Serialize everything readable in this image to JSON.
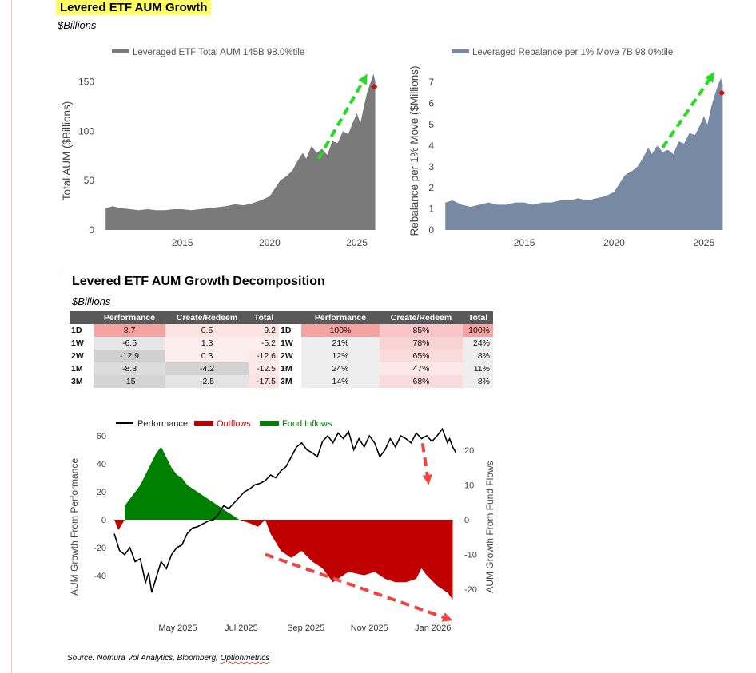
{
  "header": {
    "title": "Levered ETF AUM Growth",
    "subtitle": "$Billions"
  },
  "section2": {
    "title": "Levered ETF AUM Growth Decomposition",
    "subtitle": "$Billions"
  },
  "source": {
    "prefix": "Source: Nomura Vol Analytics, Bloomberg, ",
    "underlined": "Optionmetrics"
  },
  "colors": {
    "aum_area": "#7a7a7a",
    "rebalance_area": "#7889a3",
    "arrow": "#22dd22",
    "marker": "#cc1111",
    "performance_line": "#000000",
    "outflows": "#c00000",
    "inflows": "#008000",
    "down_arrow": "#ee4444"
  },
  "table": {
    "headers": [
      "",
      "Performance",
      "Create/Redeem",
      "Total",
      "",
      "Performance",
      "Create/Redeem",
      "Total"
    ],
    "rows": [
      {
        "label": "1D",
        "perf": "8.7",
        "cr": "0.5",
        "total": "9.2",
        "label2": "1D",
        "pct_perf": "100%",
        "pct_cr": "85%",
        "pct_total": "100%"
      },
      {
        "label": "1W",
        "perf": "-6.5",
        "cr": "1.3",
        "total": "-5.2",
        "label2": "1W",
        "pct_perf": "21%",
        "pct_cr": "78%",
        "pct_total": "24%"
      },
      {
        "label": "2W",
        "perf": "-12.9",
        "cr": "0.3",
        "total": "-12.6",
        "label2": "2W",
        "pct_perf": "12%",
        "pct_cr": "65%",
        "pct_total": "8%"
      },
      {
        "label": "1M",
        "perf": "-8.3",
        "cr": "-4.2",
        "total": "-12.5",
        "label2": "1M",
        "pct_perf": "24%",
        "pct_cr": "47%",
        "pct_total": "11%"
      },
      {
        "label": "3M",
        "perf": "-15",
        "cr": "-2.5",
        "total": "-17.5",
        "label2": "3M",
        "pct_perf": "14%",
        "pct_cr": "68%",
        "pct_total": "8%"
      }
    ],
    "cell_colors": [
      [
        "#f4a3a3",
        "#fce3e3",
        "#fce3e3",
        "#f4a3a3",
        "#f8c6c6",
        "#f4a3a3"
      ],
      [
        "#e6e6e6",
        "#fdeeee",
        "#fdeeee",
        "#eeeeee",
        "#f9d2d2",
        "#eeeeee"
      ],
      [
        "#d0d0d0",
        "#fdeeee",
        "#fce8e8",
        "#eeeeee",
        "#fbdcdc",
        "#eeeeee"
      ],
      [
        "#dcdcdc",
        "#d3d3d3",
        "#fce8e8",
        "#eeeeee",
        "#fde8e8",
        "#eeeeee"
      ],
      [
        "#d4d4d4",
        "#e4e4e4",
        "#fce3e3",
        "#eeeeee",
        "#fbdcdc",
        "#eeeeee"
      ]
    ]
  },
  "chart_data": [
    {
      "type": "area",
      "title": "Leveraged ETF Total AUM 145B 98.0%tile",
      "legend": "Leveraged ETF Total AUM 145B 98.0%tile",
      "ylabel": "Total AUM ($Billions)",
      "xlabel": "",
      "ylim": [
        0,
        160
      ],
      "xlim": [
        2010.5,
        2026.3
      ],
      "yticks": [
        0,
        50,
        100,
        150
      ],
      "xticks": [
        2015,
        2020,
        2025
      ],
      "series": [
        {
          "name": "Leveraged ETF Total AUM",
          "x": [
            2010.6,
            2011,
            2011.5,
            2012,
            2012.5,
            2013,
            2013.5,
            2014,
            2014.5,
            2015,
            2015.5,
            2016,
            2016.5,
            2017,
            2017.5,
            2018,
            2018.5,
            2019,
            2019.5,
            2020,
            2020.3,
            2020.6,
            2021,
            2021.3,
            2021.6,
            2021.9,
            2022.1,
            2022.4,
            2022.7,
            2023,
            2023.3,
            2023.6,
            2023.9,
            2024.2,
            2024.5,
            2024.8,
            2025,
            2025.2,
            2025.4,
            2025.6,
            2025.8,
            2025.95,
            2026.05
          ],
          "values": [
            22,
            24,
            22,
            21,
            20,
            21,
            20,
            20,
            21,
            21,
            20,
            21,
            22,
            23,
            24,
            26,
            25,
            27,
            30,
            34,
            42,
            50,
            55,
            60,
            70,
            78,
            72,
            85,
            78,
            82,
            76,
            90,
            88,
            100,
            97,
            110,
            118,
            108,
            125,
            140,
            150,
            158,
            150
          ]
        }
      ],
      "arrow": {
        "from": [
          2022.8,
          72
        ],
        "to": [
          2025.6,
          158
        ]
      },
      "marker": {
        "x": 2026.0,
        "y": 145
      }
    },
    {
      "type": "area",
      "title": "Leveraged Rebalance per 1% Move 7B 98.0%tile",
      "legend": "Leveraged Rebalance per 1% Move 7B 98.0%tile",
      "ylabel": "Rebalance per 1% Move ($Millions)",
      "xlabel": "",
      "ylim": [
        0,
        7.5
      ],
      "xlim": [
        2010.5,
        2026.3
      ],
      "yticks": [
        0,
        1,
        2,
        3,
        4,
        5,
        6,
        7
      ],
      "xticks": [
        2015,
        2020,
        2025
      ],
      "series": [
        {
          "name": "Leveraged Rebalance per 1% Move",
          "x": [
            2010.6,
            2011,
            2011.5,
            2012,
            2012.5,
            2013,
            2013.5,
            2014,
            2014.5,
            2015,
            2015.5,
            2016,
            2016.5,
            2017,
            2017.5,
            2018,
            2018.5,
            2019,
            2019.5,
            2020,
            2020.3,
            2020.6,
            2021,
            2021.3,
            2021.6,
            2021.9,
            2022.1,
            2022.4,
            2022.7,
            2023,
            2023.3,
            2023.6,
            2023.9,
            2024.2,
            2024.5,
            2024.8,
            2025,
            2025.2,
            2025.4,
            2025.6,
            2025.8,
            2025.95,
            2026.05
          ],
          "values": [
            1.3,
            1.4,
            1.2,
            1.1,
            1.2,
            1.3,
            1.2,
            1.2,
            1.3,
            1.3,
            1.2,
            1.3,
            1.3,
            1.4,
            1.4,
            1.5,
            1.4,
            1.5,
            1.6,
            1.8,
            2.2,
            2.6,
            2.8,
            3.0,
            3.4,
            3.9,
            3.6,
            4.0,
            3.7,
            3.8,
            3.6,
            4.2,
            4.1,
            4.6,
            4.5,
            5.0,
            5.4,
            5.0,
            5.8,
            6.4,
            6.9,
            7.2,
            6.9
          ]
        }
      ],
      "arrow": {
        "from": [
          2022.7,
          3.9
        ],
        "to": [
          2025.6,
          7.5
        ]
      },
      "marker": {
        "x": 2026.0,
        "y": 6.5
      }
    },
    {
      "type": "line",
      "title": "",
      "legend": [
        "Performance",
        "Outflows",
        "Fund Inflows"
      ],
      "ylabel": "AUM Growth From Performance",
      "y2label": "AUM Growth From Fund Flows",
      "ylim": [
        -55,
        70
      ],
      "y2lim": [
        -25,
        20
      ],
      "yticks": [
        -40,
        -20,
        0,
        20,
        40,
        60
      ],
      "y2ticks": [
        -20,
        -10,
        0,
        10,
        20
      ],
      "x_axis": "Days since 2025-03-01 (0 to 330)",
      "xticks": [
        {
          "x": 61,
          "label": "May 2025"
        },
        {
          "x": 122,
          "label": "Jul 2025"
        },
        {
          "x": 184,
          "label": "Sep 2025"
        },
        {
          "x": 245,
          "label": "Nov 2025"
        },
        {
          "x": 306,
          "label": "Jan 2026"
        }
      ],
      "series": [
        {
          "name": "Performance",
          "x": [
            0,
            5,
            10,
            15,
            20,
            25,
            30,
            33,
            36,
            40,
            45,
            50,
            55,
            60,
            65,
            70,
            75,
            80,
            85,
            90,
            95,
            100,
            105,
            110,
            115,
            120,
            125,
            130,
            135,
            140,
            145,
            150,
            155,
            160,
            165,
            170,
            175,
            180,
            185,
            190,
            195,
            200,
            205,
            210,
            215,
            220,
            225,
            230,
            235,
            240,
            245,
            250,
            255,
            260,
            265,
            270,
            275,
            280,
            285,
            290,
            295,
            300,
            305,
            310,
            315,
            320,
            322,
            325,
            328
          ],
          "values": [
            -10,
            -22,
            -25,
            -20,
            -30,
            -28,
            -45,
            -38,
            -52,
            -42,
            -30,
            -35,
            -25,
            -20,
            -18,
            -10,
            -6,
            -5,
            -3,
            -1,
            0,
            4,
            10,
            8,
            12,
            16,
            20,
            22,
            25,
            26,
            28,
            32,
            30,
            35,
            38,
            45,
            52,
            55,
            50,
            48,
            45,
            56,
            60,
            55,
            62,
            58,
            63,
            50,
            58,
            52,
            60,
            55,
            45,
            50,
            58,
            52,
            60,
            58,
            55,
            62,
            58,
            60,
            56,
            60,
            65,
            55,
            58,
            52,
            48
          ]
        },
        {
          "name": "Outflows",
          "x": [
            0,
            4,
            8,
            10,
            120,
            130,
            138,
            145,
            150,
            160,
            170,
            180,
            190,
            200,
            210,
            220,
            225,
            240,
            250,
            260,
            270,
            280,
            290,
            295,
            300,
            310,
            320,
            325
          ],
          "values": [
            0,
            -3,
            -1,
            0,
            0,
            -1,
            -2,
            0,
            -4,
            -9,
            -11,
            -9,
            -12,
            -14,
            -18,
            -16,
            -15,
            -16,
            -15,
            -17,
            -18,
            -18,
            -17,
            -14,
            -16,
            -19,
            -21,
            -23
          ]
        },
        {
          "name": "Fund Inflows",
          "x": [
            10,
            15,
            20,
            25,
            30,
            35,
            40,
            45,
            50,
            55,
            60,
            65,
            70,
            75,
            80,
            85,
            90,
            95,
            100,
            105,
            110,
            115,
            120
          ],
          "values": [
            4,
            6,
            8,
            10,
            13,
            16,
            19,
            21,
            18,
            15,
            13,
            12,
            10,
            9,
            8,
            7,
            6,
            5,
            4,
            3,
            2,
            1,
            0
          ]
        }
      ],
      "annotations": [
        {
          "type": "arrow",
          "from": [
            296,
            22
          ],
          "to": [
            302,
            10
          ]
        },
        {
          "type": "arrow",
          "from": [
            145,
            -10
          ],
          "to": [
            325,
            -29
          ]
        }
      ]
    }
  ]
}
